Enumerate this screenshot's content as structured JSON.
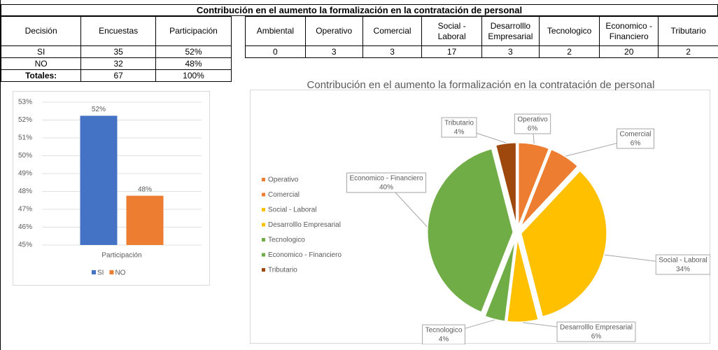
{
  "title": "Contribución en el aumento la formalización en la contratación de personal",
  "table1": {
    "headers": [
      "Decisión",
      "Encuestas",
      "Participación"
    ],
    "rows": [
      [
        "SI",
        35,
        "52%"
      ],
      [
        "NO",
        32,
        "48%"
      ],
      [
        "Totales:",
        67,
        "100%"
      ]
    ]
  },
  "table2": {
    "headers": [
      "Ambiental",
      "Operativo",
      "Comercial",
      "Social - Laboral",
      "Desarrolllo Empresarial",
      "Tecnologico",
      "Economico - Financiero",
      "Tributario"
    ],
    "rows": [
      [
        0,
        3,
        3,
        17,
        3,
        2,
        20,
        2
      ]
    ]
  },
  "chart_data": [
    {
      "type": "bar",
      "categories": [
        "Participación"
      ],
      "series": [
        {
          "name": "SI",
          "color": "#4472c4",
          "values": [
            52.24
          ],
          "value_labels": [
            "52%"
          ]
        },
        {
          "name": "NO",
          "color": "#ed7d31",
          "values": [
            47.76
          ],
          "value_labels": [
            "48%"
          ]
        }
      ],
      "ylim": [
        45,
        53
      ],
      "yticks": [
        {
          "value": 45,
          "label": "45%"
        },
        {
          "value": 46,
          "label": "46%"
        },
        {
          "value": 47,
          "label": "47%"
        },
        {
          "value": 48,
          "label": "48%"
        },
        {
          "value": 49,
          "label": "49%"
        },
        {
          "value": 50,
          "label": "50%"
        },
        {
          "value": 51,
          "label": "51%"
        },
        {
          "value": 52,
          "label": "52%"
        },
        {
          "value": 53,
          "label": "53%"
        }
      ],
      "grid": true,
      "legend": "bottom"
    },
    {
      "type": "pie",
      "title": "Contribución en el aumento la formalización en la contratación de personal",
      "categories": [
        "Operativo",
        "Comercial",
        "Social - Laboral",
        "Desarrolllo Empresarial",
        "Tecnologico",
        "Economico - Financiero",
        "Tributario"
      ],
      "values": [
        6,
        6,
        34,
        6,
        4,
        40,
        4
      ],
      "value_labels": [
        "6%",
        "6%",
        "34%",
        "6%",
        "4%",
        "40%",
        "4%"
      ],
      "colors": [
        "#ed7d31",
        "#ed7d31",
        "#ffc000",
        "#ffc000",
        "#70ad47",
        "#70ad47",
        "#9e480e"
      ],
      "legend": "left"
    }
  ]
}
